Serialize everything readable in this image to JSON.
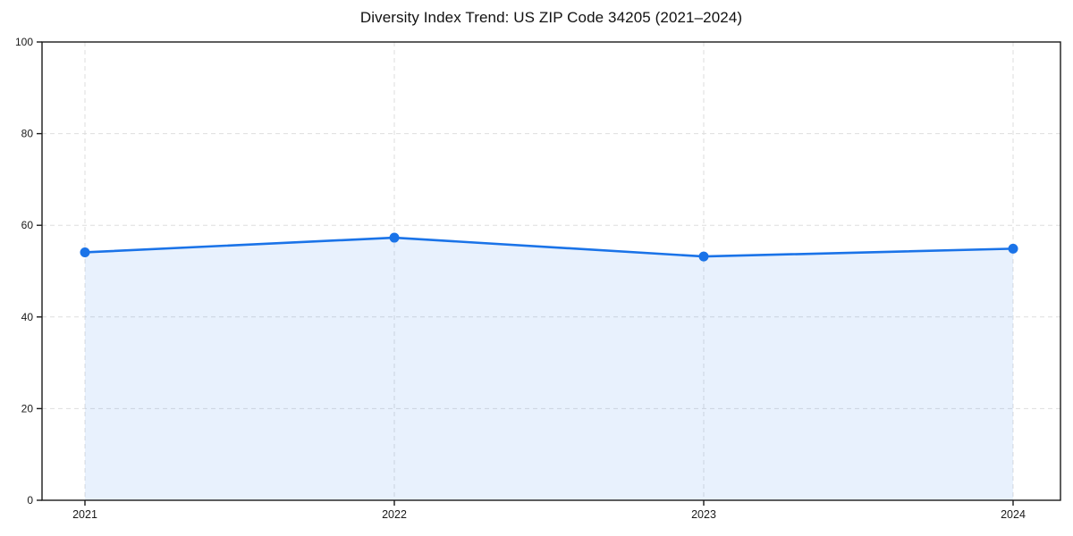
{
  "chart_data": {
    "type": "area",
    "title": "Diversity Index Trend: US ZIP Code 34205 (2021–2024)",
    "categories": [
      "2021",
      "2022",
      "2023",
      "2024"
    ],
    "series": [
      {
        "name": "Diversity Index",
        "values": [
          54.1,
          57.3,
          53.2,
          54.9
        ]
      }
    ],
    "xlabel": "",
    "ylabel": "",
    "ylim": [
      0,
      100
    ],
    "yticks": [
      0,
      20,
      40,
      60,
      80,
      100
    ],
    "grid": true,
    "grid_style": "dashed",
    "legend": false,
    "marker": "circle",
    "colors": {
      "line": "#1a73e8",
      "marker": "#1a73e8",
      "fill": "rgba(26,115,232,0.10)",
      "grid": "#dedede",
      "axis": "#1a1a1a",
      "tick_text": "#1a1a1a",
      "title_text": "#111111",
      "background": "#ffffff"
    }
  }
}
